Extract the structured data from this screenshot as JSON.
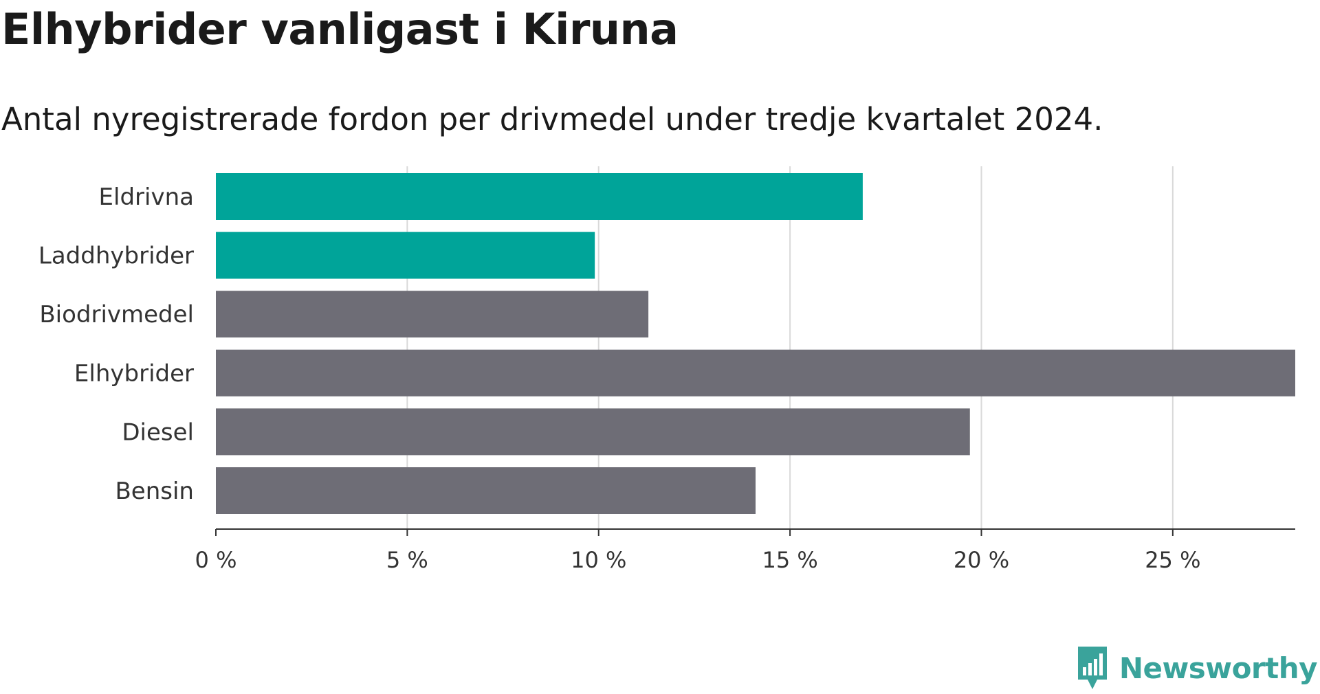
{
  "title": "Elhybrider vanligast i Kiruna",
  "subtitle": "Antal nyregistrerade fordon per drivmedel under tredje kvartalet 2024.",
  "brand": {
    "name": "Newsworthy",
    "icon": "newsworthy-logo-icon",
    "color": "#3aa39b"
  },
  "colors": {
    "highlight": "#00a499",
    "default": "#6e6d76",
    "grid": "#d9d9d9",
    "axis": "#333333"
  },
  "chart_data": {
    "type": "bar",
    "orientation": "horizontal",
    "categories": [
      "Eldrivna",
      "Laddhybrider",
      "Biodrivmedel",
      "Elhybrider",
      "Diesel",
      "Bensin"
    ],
    "values": [
      16.9,
      9.9,
      11.3,
      28.2,
      19.7,
      14.1
    ],
    "highlighted": [
      true,
      true,
      false,
      false,
      false,
      false
    ],
    "unit": "%",
    "xlim": [
      0,
      28.2
    ],
    "ticks": [
      0,
      5,
      10,
      15,
      20,
      25
    ],
    "tick_labels": [
      "0 %",
      "5 %",
      "10 %",
      "15 %",
      "20 %",
      "25 %"
    ],
    "grid": true,
    "title": "Elhybrider vanligast i Kiruna",
    "subtitle": "Antal nyregistrerade fordon per drivmedel under tredje kvartalet 2024."
  }
}
